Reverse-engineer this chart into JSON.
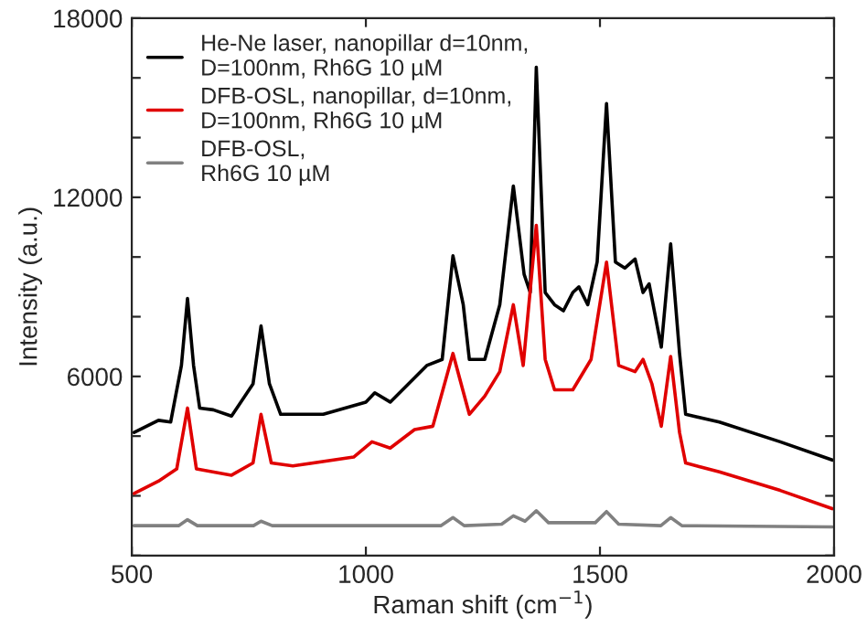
{
  "chart_data": {
    "type": "line",
    "xlabel": "Raman shift (cm$^{−1}$)",
    "ylabel": "Intensity (a.u.)",
    "xlim": [
      500,
      2000
    ],
    "xticks": [
      500,
      1000,
      1500,
      2000
    ],
    "ylim": [
      0,
      18000
    ],
    "yticks": [
      {
        "value": 0,
        "label": null
      },
      {
        "value": 2000,
        "label": null
      },
      {
        "value": 4000,
        "label": null
      },
      6000,
      {
        "value": 8000,
        "label": null
      },
      {
        "value": 10000,
        "label": null
      },
      12000,
      {
        "value": 14000,
        "label": null
      },
      {
        "value": 16000,
        "label": null
      },
      18000
    ],
    "grid": false,
    "legend": "top left",
    "series": [
      {
        "name": "He-Ne laser, nanopillar d=10nm,\nD=100nm, Rh6G 10 µM",
        "color": "#000000",
        "x": [
          505,
          557,
          583,
          606,
          619,
          632,
          645,
          674,
          713,
          759,
          776,
          794,
          818,
          909,
          1000,
          1019,
          1052,
          1091,
          1130,
          1163,
          1186,
          1208,
          1221,
          1254,
          1286,
          1315,
          1338,
          1351,
          1364,
          1383,
          1403,
          1422,
          1442,
          1455,
          1474,
          1494,
          1514,
          1533,
          1553,
          1575,
          1592,
          1605,
          1631,
          1651,
          1670,
          1683,
          1755,
          1885,
          1996
        ],
        "values": [
          4120,
          4530,
          4470,
          6365,
          8610,
          6365,
          4940,
          4880,
          4670,
          5750,
          7690,
          5750,
          4730,
          4730,
          5140,
          5450,
          5140,
          5750,
          6365,
          6570,
          10040,
          8400,
          6570,
          6570,
          8400,
          12380,
          9420,
          8810,
          16360,
          8810,
          8400,
          8200,
          8810,
          9000,
          8400,
          9830,
          15140,
          9830,
          9630,
          9930,
          8810,
          9100,
          6980,
          10440,
          6770,
          4730,
          4470,
          3810,
          3200
        ]
      },
      {
        "name": "DFB-OSL, nanopillar, d=10nm,\nD=100nm, Rh6G 10 µM",
        "color": "#e00000",
        "x": [
          505,
          557,
          596,
          619,
          638,
          713,
          759,
          776,
          798,
          844,
          974,
          1013,
          1052,
          1104,
          1143,
          1186,
          1221,
          1254,
          1286,
          1315,
          1336,
          1364,
          1383,
          1403,
          1442,
          1481,
          1514,
          1540,
          1575,
          1592,
          1611,
          1631,
          1651,
          1670,
          1683,
          1755,
          1885,
          1996
        ],
        "values": [
          2080,
          2490,
          2900,
          4940,
          2900,
          2690,
          3100,
          4730,
          3100,
          3000,
          3300,
          3810,
          3600,
          4220,
          4330,
          6770,
          4730,
          5340,
          6160,
          8400,
          6365,
          11060,
          6570,
          5550,
          5550,
          6570,
          9830,
          6365,
          6160,
          6570,
          5750,
          4330,
          6670,
          4120,
          3100,
          2800,
          2180,
          1570
        ]
      },
      {
        "name": "DFB-OSL,\nRh6G 10 µM",
        "color": "#808080",
        "x": [
          505,
          600,
          619,
          640,
          760,
          776,
          800,
          1160,
          1186,
          1210,
          1290,
          1315,
          1340,
          1364,
          1390,
          1490,
          1514,
          1540,
          1630,
          1651,
          1675,
          1996
        ],
        "values": [
          1000,
          1000,
          1200,
          1000,
          1000,
          1150,
          1000,
          1000,
          1270,
          1000,
          1050,
          1330,
          1150,
          1500,
          1100,
          1100,
          1470,
          1050,
          1000,
          1270,
          1000,
          960
        ]
      }
    ]
  }
}
